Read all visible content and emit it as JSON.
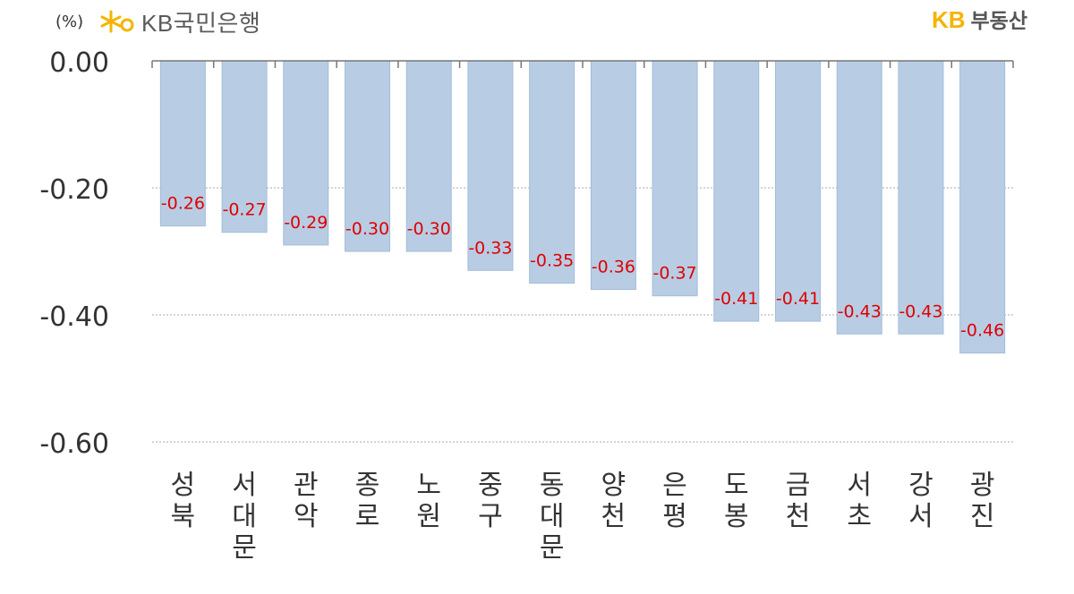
{
  "header": {
    "unit": "(%)",
    "left_logo": "KB국민은행",
    "right_logo_kb": "KB",
    "right_logo_name": "부동산",
    "logo_star_icon": "kb-star-icon"
  },
  "colors": {
    "bar": "#b8cde4",
    "bar_stroke": "#a3bcd8",
    "data_label": "#e00000",
    "axis": "#777777",
    "grid": "#aaaaaa",
    "kb_yellow": "#f5b400"
  },
  "chart_data": {
    "type": "bar",
    "title": "",
    "xlabel": "",
    "ylabel": "",
    "categories": [
      "성북",
      "서대문",
      "관악",
      "종로",
      "노원",
      "중구",
      "동대문",
      "양천",
      "은평",
      "도봉",
      "금천",
      "서초",
      "강서",
      "광진"
    ],
    "values": [
      -0.26,
      -0.27,
      -0.29,
      -0.3,
      -0.3,
      -0.33,
      -0.35,
      -0.36,
      -0.37,
      -0.41,
      -0.41,
      -0.43,
      -0.43,
      -0.46
    ],
    "value_labels": [
      "-0.26",
      "-0.27",
      "-0.29",
      "-0.30",
      "-0.30",
      "-0.33",
      "-0.35",
      "-0.36",
      "-0.37",
      "-0.41",
      "-0.41",
      "-0.43",
      "-0.43",
      "-0.46"
    ],
    "ylim": [
      -0.6,
      0.0
    ],
    "yticks": [
      0.0,
      -0.2,
      -0.4,
      -0.6
    ],
    "ytick_labels": [
      "0.00",
      "-0.20",
      "-0.40",
      "-0.60"
    ],
    "grid": true,
    "legend": "none"
  }
}
